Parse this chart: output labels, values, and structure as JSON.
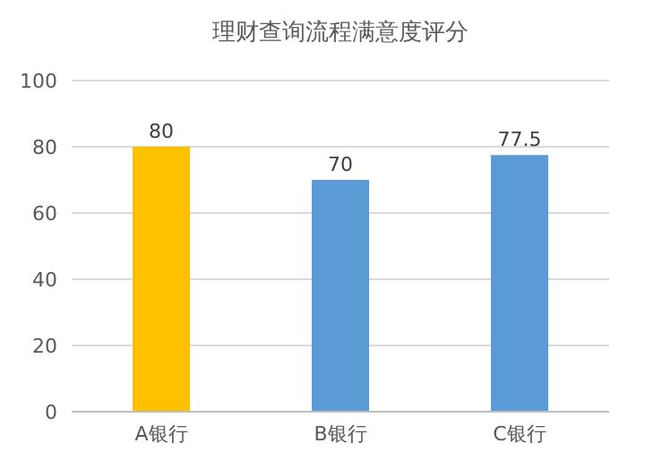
{
  "chart_data": {
    "type": "bar",
    "title": "理财查询流程满意度评分",
    "categories": [
      "A银行",
      "B银行",
      "C银行"
    ],
    "values": [
      80,
      70,
      77.5
    ],
    "colors": [
      "#ffc000",
      "#5b9bd5",
      "#5b9bd5"
    ],
    "ylim": [
      0,
      100
    ],
    "yticks": [
      0,
      20,
      40,
      60,
      80,
      100
    ],
    "grid": "y",
    "data_labels": true
  }
}
